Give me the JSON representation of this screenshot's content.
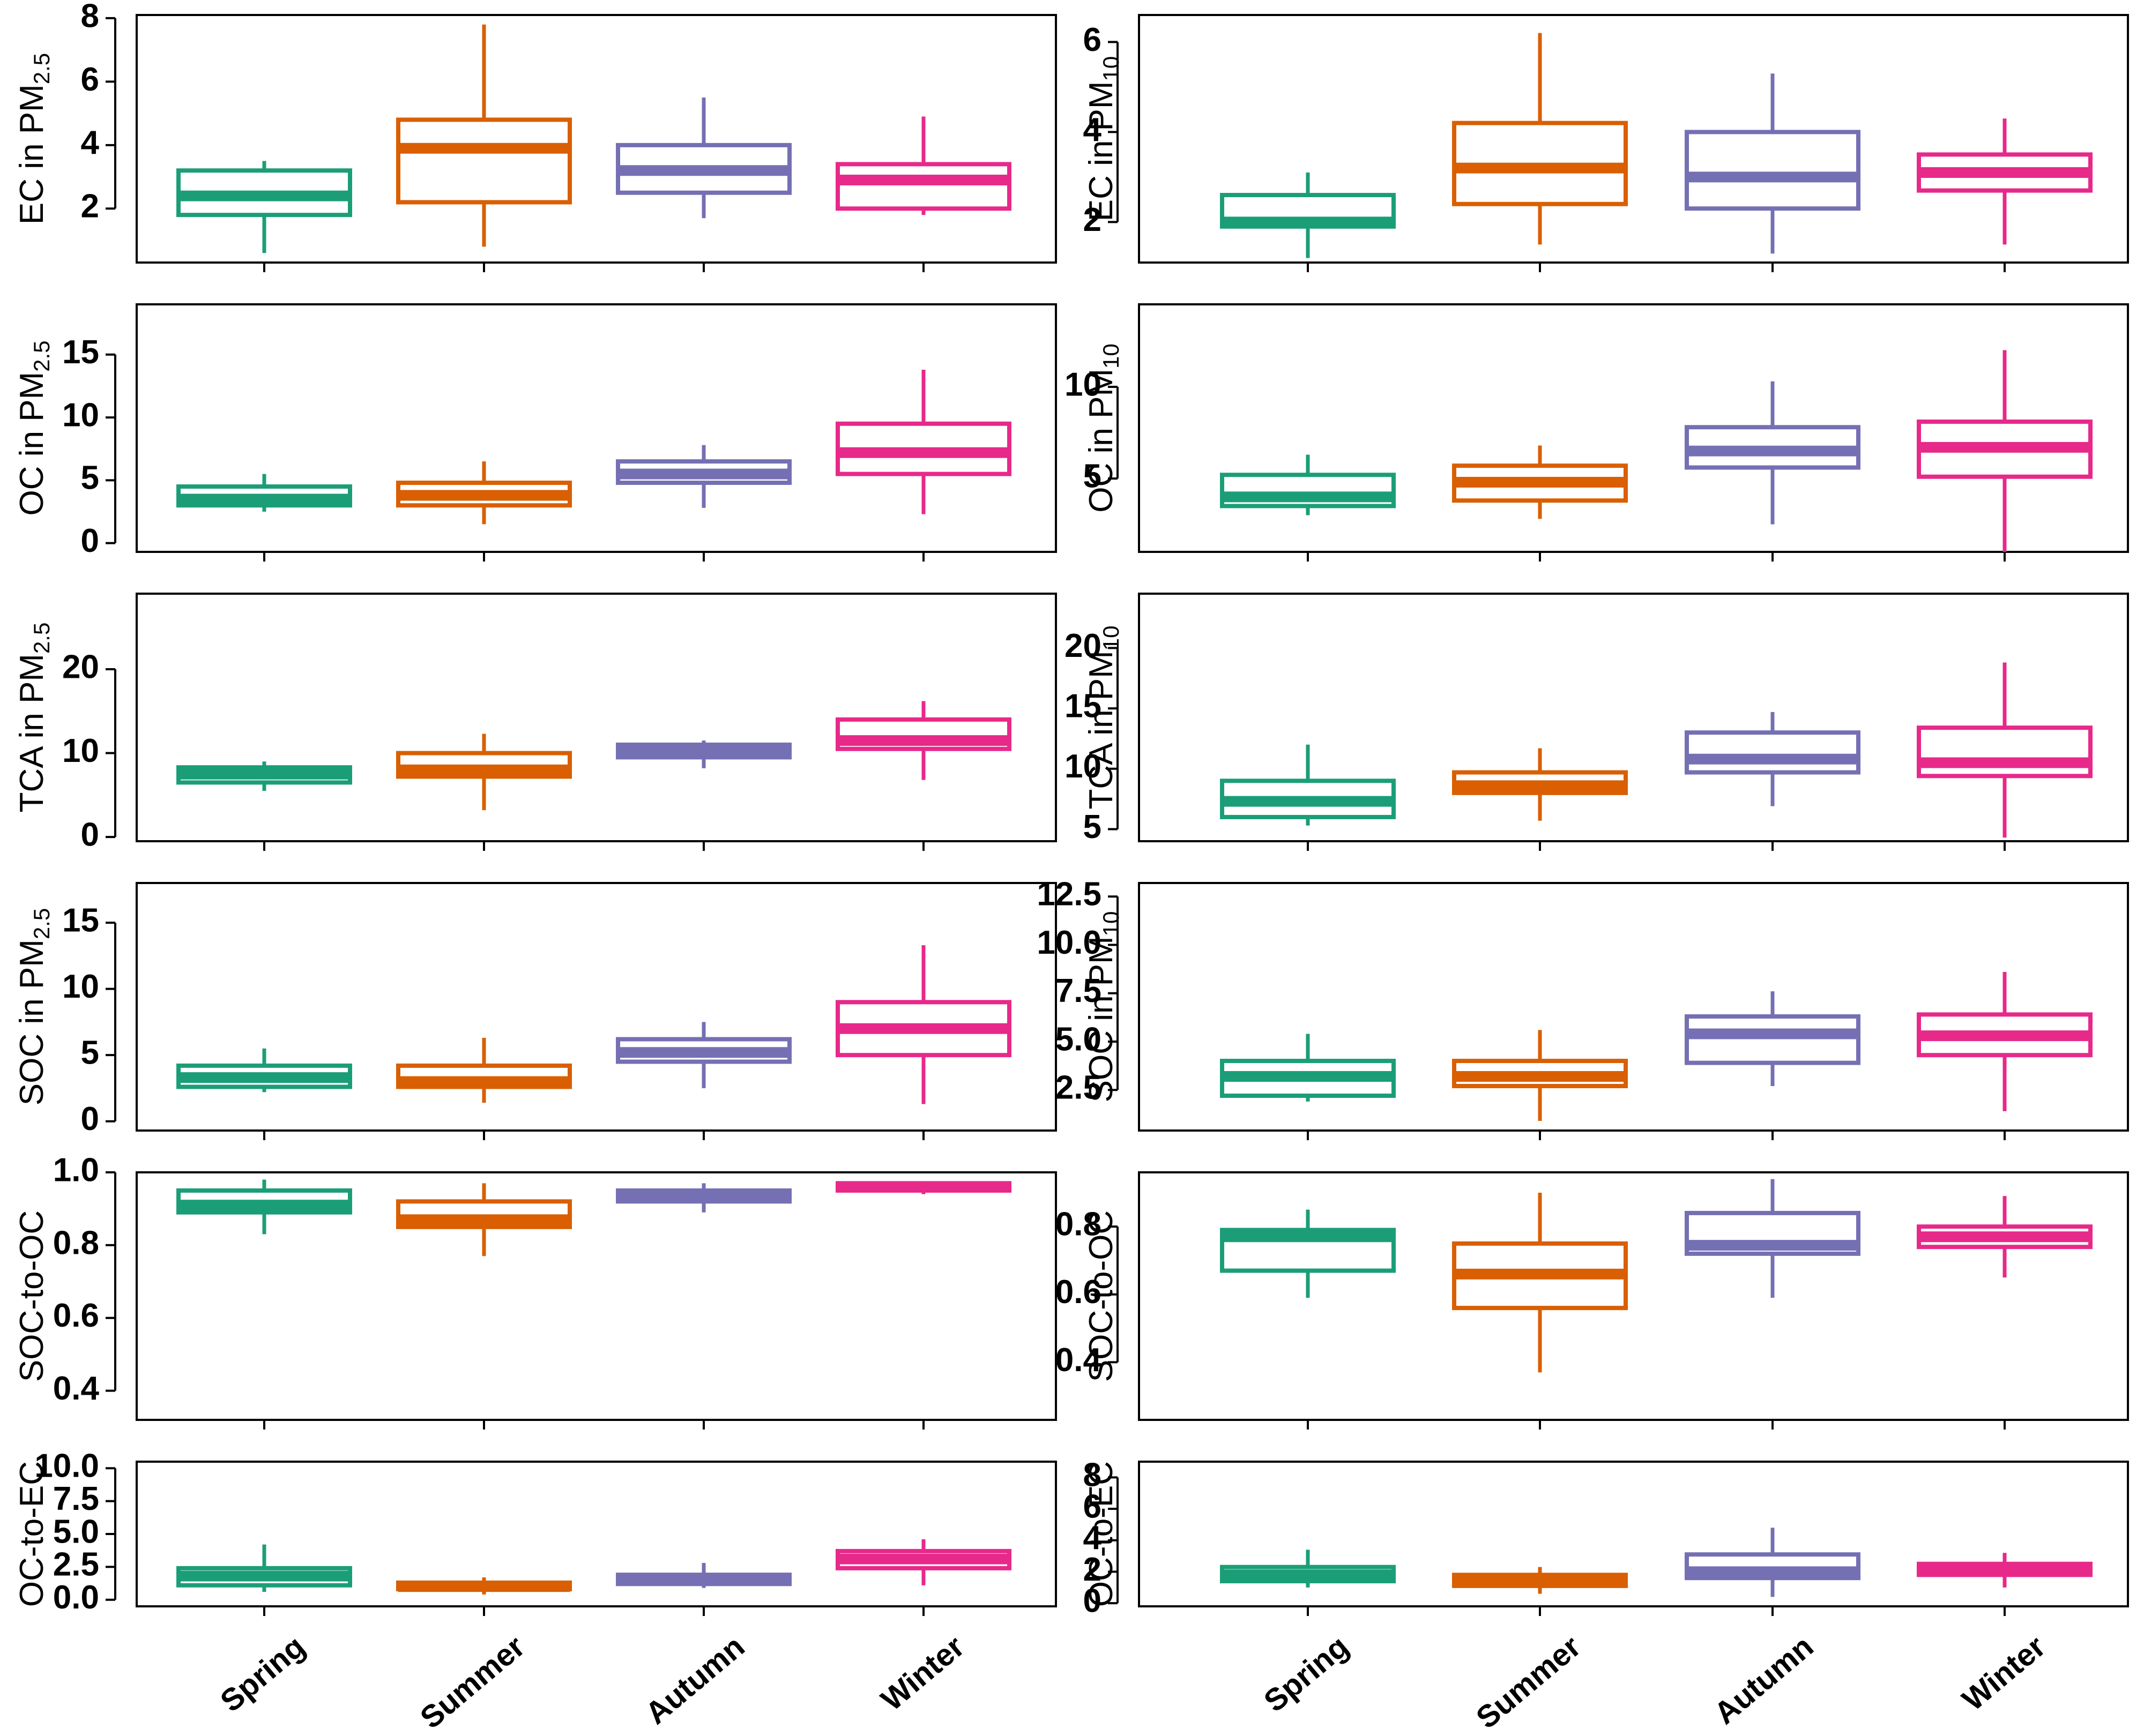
{
  "chart_data": {
    "type": "boxplot",
    "categories": [
      "Spring",
      "Summer",
      "Autumn",
      "Winter"
    ],
    "colors": [
      "#1b9e77",
      "#d95f02",
      "#7570b3",
      "#e7298a"
    ],
    "panels": [
      {
        "id": "ec-pm25",
        "column": "left",
        "row": 0,
        "ylabel": {
          "main": "EC in PM",
          "sub": "2.5"
        },
        "ylim": [
          0.3,
          8.1
        ],
        "yticks": [
          2,
          4,
          6,
          8
        ],
        "ytick_labels": [
          "2",
          "4",
          "6",
          "8"
        ],
        "boxes": [
          {
            "min": 0.6,
            "q1": 1.8,
            "median": 2.4,
            "q3": 3.2,
            "max": 3.5
          },
          {
            "min": 0.8,
            "q1": 2.2,
            "median": 3.9,
            "q3": 4.8,
            "max": 7.8
          },
          {
            "min": 1.7,
            "q1": 2.5,
            "median": 3.2,
            "q3": 4.0,
            "max": 5.5
          },
          {
            "min": 1.8,
            "q1": 2.0,
            "median": 2.9,
            "q3": 3.4,
            "max": 4.9
          }
        ]
      },
      {
        "id": "ec-pm10",
        "column": "right",
        "row": 0,
        "ylabel": {
          "main": "EC in PM",
          "sub": "10"
        },
        "ylim": [
          1.1,
          6.6
        ],
        "yticks": [
          2,
          4,
          6
        ],
        "ytick_labels": [
          "2",
          "4",
          "6"
        ],
        "boxes": [
          {
            "min": 1.2,
            "q1": 1.9,
            "median": 2.0,
            "q3": 2.6,
            "max": 3.1
          },
          {
            "min": 1.5,
            "q1": 2.4,
            "median": 3.2,
            "q3": 4.2,
            "max": 6.2
          },
          {
            "min": 1.3,
            "q1": 2.3,
            "median": 3.0,
            "q3": 4.0,
            "max": 5.3
          },
          {
            "min": 1.5,
            "q1": 2.7,
            "median": 3.1,
            "q3": 3.5,
            "max": 4.3
          }
        ]
      },
      {
        "id": "oc-pm25",
        "column": "left",
        "row": 1,
        "ylabel": {
          "main": "OC in PM",
          "sub": "2.5"
        },
        "ylim": [
          -0.7,
          19
        ],
        "yticks": [
          0,
          5,
          10,
          15
        ],
        "ytick_labels": [
          "0",
          "5",
          "10",
          "15"
        ],
        "boxes": [
          {
            "min": 2.5,
            "q1": 3.0,
            "median": 3.5,
            "q3": 4.5,
            "max": 5.5
          },
          {
            "min": 1.5,
            "q1": 3.0,
            "median": 3.8,
            "q3": 4.8,
            "max": 6.5
          },
          {
            "min": 2.8,
            "q1": 4.8,
            "median": 5.5,
            "q3": 6.5,
            "max": 7.8
          },
          {
            "min": 2.3,
            "q1": 5.5,
            "median": 7.2,
            "q3": 9.5,
            "max": 13.8
          }
        ]
      },
      {
        "id": "oc-pm10",
        "column": "right",
        "row": 1,
        "ylabel": {
          "main": "OC in PM",
          "sub": "10"
        },
        "ylim": [
          1,
          14.5
        ],
        "yticks": [
          5,
          10
        ],
        "ytick_labels": [
          "5",
          "10"
        ],
        "boxes": [
          {
            "min": 3.0,
            "q1": 3.5,
            "median": 4.0,
            "q3": 5.2,
            "max": 6.3
          },
          {
            "min": 2.8,
            "q1": 3.8,
            "median": 4.8,
            "q3": 5.7,
            "max": 6.8
          },
          {
            "min": 2.5,
            "q1": 5.6,
            "median": 6.5,
            "q3": 7.8,
            "max": 10.3
          },
          {
            "min": 1.0,
            "q1": 5.1,
            "median": 6.7,
            "q3": 8.1,
            "max": 12.0
          }
        ]
      },
      {
        "id": "tca-pm25",
        "column": "left",
        "row": 2,
        "ylabel": {
          "main": "TCA in PM",
          "sub": "2.5"
        },
        "ylim": [
          -0.5,
          29
        ],
        "yticks": [
          0,
          10,
          20
        ],
        "ytick_labels": [
          "0",
          "10",
          "20"
        ],
        "boxes": [
          {
            "min": 5.5,
            "q1": 6.5,
            "median": 7.5,
            "q3": 8.3,
            "max": 9.0
          },
          {
            "min": 3.2,
            "q1": 7.2,
            "median": 8.0,
            "q3": 10.0,
            "max": 12.3
          },
          {
            "min": 8.2,
            "q1": 9.5,
            "median": 10.2,
            "q3": 11.0,
            "max": 11.5
          },
          {
            "min": 6.8,
            "q1": 10.5,
            "median": 11.5,
            "q3": 14.0,
            "max": 16.2
          }
        ]
      },
      {
        "id": "tca-pm10",
        "column": "right",
        "row": 2,
        "ylabel": {
          "main": "TCA in PM",
          "sub": "10"
        },
        "ylim": [
          4,
          24.5
        ],
        "yticks": [
          5,
          10,
          15,
          20
        ],
        "ytick_labels": [
          "5",
          "10",
          "15",
          "20"
        ],
        "boxes": [
          {
            "min": 5.3,
            "q1": 6.0,
            "median": 7.3,
            "q3": 9.0,
            "max": 12.0
          },
          {
            "min": 5.7,
            "q1": 8.0,
            "median": 8.6,
            "q3": 9.7,
            "max": 11.7
          },
          {
            "min": 6.9,
            "q1": 9.7,
            "median": 10.8,
            "q3": 13.0,
            "max": 14.7
          },
          {
            "min": 4.3,
            "q1": 9.4,
            "median": 10.5,
            "q3": 13.4,
            "max": 18.8
          }
        ]
      },
      {
        "id": "soc-pm25",
        "column": "left",
        "row": 3,
        "ylabel": {
          "main": "SOC in PM",
          "sub": "2.5"
        },
        "ylim": [
          -0.7,
          18
        ],
        "yticks": [
          0,
          5,
          10,
          15
        ],
        "ytick_labels": [
          "0",
          "5",
          "10",
          "15"
        ],
        "boxes": [
          {
            "min": 2.2,
            "q1": 2.6,
            "median": 3.3,
            "q3": 4.2,
            "max": 5.5
          },
          {
            "min": 1.4,
            "q1": 2.6,
            "median": 3.0,
            "q3": 4.2,
            "max": 6.3
          },
          {
            "min": 2.5,
            "q1": 4.5,
            "median": 5.2,
            "q3": 6.2,
            "max": 7.5
          },
          {
            "min": 1.3,
            "q1": 5.0,
            "median": 7.0,
            "q3": 9.0,
            "max": 13.3
          }
        ]
      },
      {
        "id": "soc-pm10",
        "column": "right",
        "row": 3,
        "ylabel": {
          "main": "SOC in PM",
          "sub": "10"
        },
        "ylim": [
          0.4,
          13.2
        ],
        "yticks": [
          2.5,
          5.0,
          7.5,
          10.0,
          12.5
        ],
        "ytick_labels": [
          "2.5",
          "5.0",
          "7.5",
          "10.0",
          "12.5"
        ],
        "boxes": [
          {
            "min": 1.9,
            "q1": 2.2,
            "median": 3.2,
            "q3": 4.0,
            "max": 5.4
          },
          {
            "min": 0.9,
            "q1": 2.7,
            "median": 3.2,
            "q3": 4.0,
            "max": 5.6
          },
          {
            "min": 2.7,
            "q1": 3.9,
            "median": 5.4,
            "q3": 6.3,
            "max": 7.6
          },
          {
            "min": 1.4,
            "q1": 4.3,
            "median": 5.3,
            "q3": 6.4,
            "max": 8.6
          }
        ]
      },
      {
        "id": "soc-oc-pm25",
        "column": "left",
        "row": 4,
        "ylabel": {
          "main": "SOC-to-OC",
          "sub": ""
        },
        "ylim": [
          0.32,
          1.0
        ],
        "yticks": [
          0.4,
          0.6,
          0.8,
          1.0
        ],
        "ytick_labels": [
          "0.4",
          "0.6",
          "0.8",
          "1.0"
        ],
        "boxes": [
          {
            "min": 0.83,
            "q1": 0.89,
            "median": 0.91,
            "q3": 0.95,
            "max": 0.98
          },
          {
            "min": 0.77,
            "q1": 0.85,
            "median": 0.87,
            "q3": 0.92,
            "max": 0.97
          },
          {
            "min": 0.89,
            "q1": 0.92,
            "median": 0.935,
            "q3": 0.95,
            "max": 0.97
          },
          {
            "min": 0.94,
            "q1": 0.95,
            "median": 0.96,
            "q3": 0.97,
            "max": 0.975
          }
        ]
      },
      {
        "id": "soc-oc-pm10",
        "column": "right",
        "row": 4,
        "ylabel": {
          "main": "SOC-to-OC",
          "sub": ""
        },
        "ylim": [
          0.23,
          0.96
        ],
        "yticks": [
          0.4,
          0.6,
          0.8
        ],
        "ytick_labels": [
          "0.4",
          "0.6",
          "0.8"
        ],
        "boxes": [
          {
            "min": 0.59,
            "q1": 0.67,
            "median": 0.77,
            "q3": 0.79,
            "max": 0.85
          },
          {
            "min": 0.37,
            "q1": 0.56,
            "median": 0.66,
            "q3": 0.75,
            "max": 0.9
          },
          {
            "min": 0.59,
            "q1": 0.72,
            "median": 0.745,
            "q3": 0.84,
            "max": 0.94
          },
          {
            "min": 0.65,
            "q1": 0.74,
            "median": 0.77,
            "q3": 0.8,
            "max": 0.89
          }
        ]
      },
      {
        "id": "oc-ec-pm25",
        "column": "left",
        "row": 5,
        "ylabel": {
          "main": "OC-to-EC",
          "sub": ""
        },
        "ylim": [
          -0.5,
          10.5
        ],
        "yticks": [
          0.0,
          2.5,
          5.0,
          7.5,
          10.0
        ],
        "ytick_labels": [
          "0.0",
          "2.5",
          "5.0",
          "7.5",
          "10.0"
        ],
        "boxes": [
          {
            "min": 0.6,
            "q1": 1.1,
            "median": 1.8,
            "q3": 2.4,
            "max": 4.2
          },
          {
            "min": 0.4,
            "q1": 0.8,
            "median": 1.0,
            "q3": 1.3,
            "max": 1.7
          },
          {
            "min": 0.9,
            "q1": 1.2,
            "median": 1.6,
            "q3": 1.9,
            "max": 2.8
          },
          {
            "min": 1.1,
            "q1": 2.4,
            "median": 3.1,
            "q3": 3.7,
            "max": 4.6
          }
        ]
      },
      {
        "id": "oc-ec-pm10",
        "column": "right",
        "row": 5,
        "ylabel": {
          "main": "OC-to-EC",
          "sub": ""
        },
        "ylim": [
          -0.2,
          9
        ],
        "yticks": [
          0,
          2,
          4,
          6,
          8
        ],
        "ytick_labels": [
          "0",
          "2",
          "4",
          "6",
          "8"
        ],
        "boxes": [
          {
            "min": 1.0,
            "q1": 1.4,
            "median": 1.8,
            "q3": 2.3,
            "max": 3.4
          },
          {
            "min": 0.6,
            "q1": 1.1,
            "median": 1.4,
            "q3": 1.8,
            "max": 2.3
          },
          {
            "min": 0.4,
            "q1": 1.6,
            "median": 2.0,
            "q3": 3.1,
            "max": 4.8
          },
          {
            "min": 1.0,
            "q1": 1.8,
            "median": 2.2,
            "q3": 2.5,
            "max": 3.2
          }
        ]
      }
    ]
  }
}
